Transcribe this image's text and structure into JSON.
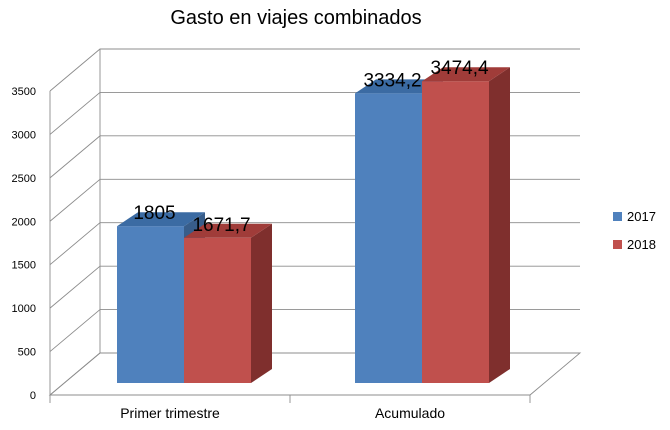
{
  "chart_data": {
    "type": "bar",
    "title": "Gasto en viajes combinados",
    "categories": [
      "Primer trimestre",
      "Acumulado"
    ],
    "series": [
      {
        "name": "2017",
        "values": [
          1805,
          3334.2
        ],
        "labels": [
          "1805",
          "3334,2"
        ],
        "color": "#4f81bd",
        "side_color": "#385d8a",
        "top_color": "#3b6ba3"
      },
      {
        "name": "2018",
        "values": [
          1671.7,
          3474.4
        ],
        "labels": [
          "1671,7",
          "3474,4"
        ],
        "color": "#c0504d",
        "side_color": "#7f2f2d",
        "top_color": "#a03c39"
      }
    ],
    "ylim": [
      0,
      3500
    ],
    "yticks": [
      0,
      500,
      1000,
      1500,
      2000,
      2500,
      3000,
      3500
    ],
    "ytick_labels": [
      "0",
      "500",
      "1000",
      "1500",
      "2000",
      "2500",
      "3000",
      "3500"
    ],
    "grid": true,
    "three_d": true,
    "legend_position": "right",
    "xlabel": "",
    "ylabel": ""
  }
}
